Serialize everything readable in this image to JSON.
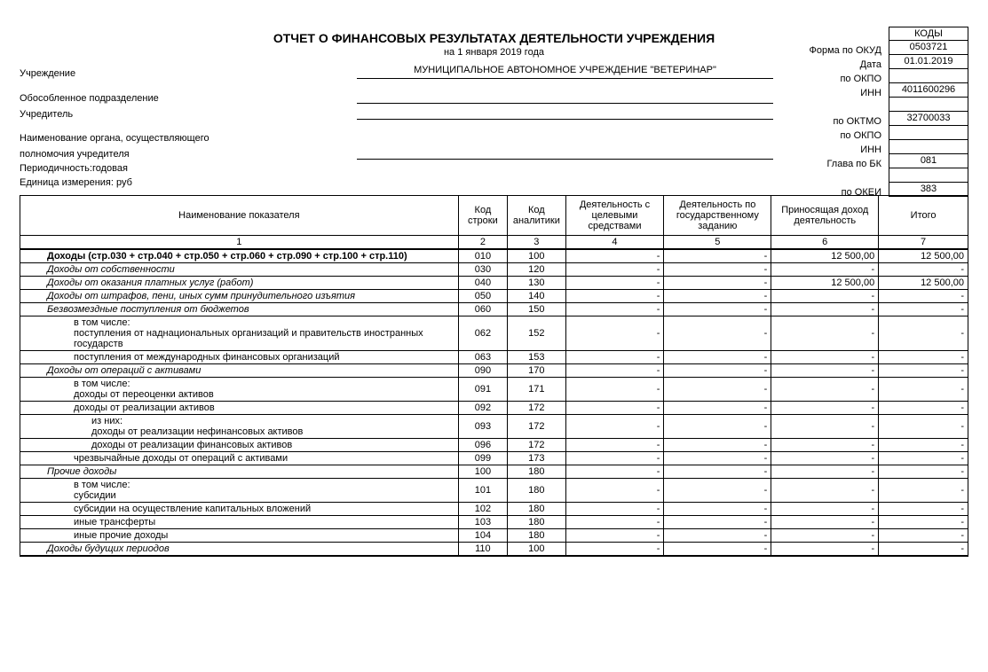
{
  "title": "ОТЧЕТ  О ФИНАНСОВЫХ РЕЗУЛЬТАТАХ ДЕЯТЕЛЬНОСТИ УЧРЕЖДЕНИЯ",
  "subtitle": "на 1 января 2019 года",
  "header": {
    "institution_lbl": "Учреждение",
    "institution_val": "МУНИЦИПАЛЬНОЕ АВТОНОМНОЕ УЧРЕЖДЕНИЕ \"ВЕТЕРИНАР\"",
    "subdiv_lbl": "Обособленное подразделение",
    "subdiv_val": "",
    "founder_lbl": "Учредитель",
    "founder_val": "",
    "authority_lbl1": "Наименование органа, осуществляющего",
    "authority_lbl2": "полномочия учредителя",
    "authority_val": "",
    "periodicity_lbl": "Периодичность:годовая",
    "unit_lbl": "Единица измерения: руб"
  },
  "codes": {
    "caption": "КОДЫ",
    "labels": [
      "Форма по ОКУД",
      "Дата",
      "по ОКПО",
      "ИНН",
      "",
      "по ОКТМО",
      "по ОКПО",
      "ИНН",
      "Глава по БК",
      "",
      "по ОКЕИ"
    ],
    "values": [
      "0503721",
      "01.01.2019",
      "",
      "4011600296",
      "",
      "32700033",
      "",
      "",
      "081",
      "",
      "383"
    ]
  },
  "table": {
    "headers": [
      "Наименование показателя",
      "Код строки",
      "Код аналитики",
      "Деятельность с целевыми средствами",
      "Деятельность по государственному заданию",
      "Приносящая доход деятельность",
      "Итого"
    ],
    "colnums": [
      "1",
      "2",
      "3",
      "4",
      "5",
      "6",
      "7"
    ],
    "rows": [
      {
        "name": "Доходы (стр.030 + стр.040 + стр.050 + стр.060 + стр.090 + стр.100 + стр.110)",
        "code": "010",
        "anal": "100",
        "v3": "-",
        "v4": "-",
        "v5": "12 500,00",
        "v6": "12 500,00",
        "bold": true,
        "indent": 1
      },
      {
        "name": "Доходы от собственности",
        "code": "030",
        "anal": "120",
        "v3": "-",
        "v4": "-",
        "v5": "-",
        "v6": "-",
        "it": true,
        "indent": 1
      },
      {
        "name": "Доходы от оказания платных услуг (работ)",
        "code": "040",
        "anal": "130",
        "v3": "-",
        "v4": "-",
        "v5": "12 500,00",
        "v6": "12 500,00",
        "it": true,
        "indent": 1
      },
      {
        "name": "Доходы от штрафов, пени, иных сумм принудительного изъятия",
        "code": "050",
        "anal": "140",
        "v3": "-",
        "v4": "-",
        "v5": "-",
        "v6": "-",
        "it": true,
        "indent": 1
      },
      {
        "name": "Безвозмездные поступления от бюджетов",
        "code": "060",
        "anal": "150",
        "v3": "-",
        "v4": "-",
        "v5": "-",
        "v6": "-",
        "it": true,
        "indent": 1
      },
      {
        "name": "в том числе:",
        "code": "",
        "anal": "",
        "v3": "",
        "v4": "",
        "v5": "",
        "v6": "",
        "indent": 2,
        "noborder": true
      },
      {
        "name": "поступления от наднациональных организаций и правительств иностранных государств",
        "code": "062",
        "anal": "152",
        "v3": "-",
        "v4": "-",
        "v5": "-",
        "v6": "-",
        "indent": 2,
        "merge": true
      },
      {
        "name": "поступления от международных финансовых организаций",
        "code": "063",
        "anal": "153",
        "v3": "-",
        "v4": "-",
        "v5": "-",
        "v6": "-",
        "indent": 2
      },
      {
        "name": "Доходы от операций с активами",
        "code": "090",
        "anal": "170",
        "v3": "-",
        "v4": "-",
        "v5": "-",
        "v6": "-",
        "it": true,
        "indent": 1
      },
      {
        "name": "в том числе:",
        "code": "",
        "anal": "",
        "v3": "",
        "v4": "",
        "v5": "",
        "v6": "",
        "indent": 2,
        "noborder": true
      },
      {
        "name": "доходы от переоценки активов",
        "code": "091",
        "anal": "171",
        "v3": "-",
        "v4": "-",
        "v5": "-",
        "v6": "-",
        "indent": 2,
        "merge": true
      },
      {
        "name": "доходы от реализации активов",
        "code": "092",
        "anal": "172",
        "v3": "-",
        "v4": "-",
        "v5": "-",
        "v6": "-",
        "indent": 2
      },
      {
        "name": "из них:",
        "code": "",
        "anal": "",
        "v3": "",
        "v4": "",
        "v5": "",
        "v6": "",
        "indent": 3,
        "noborder": true
      },
      {
        "name": "доходы от реализации нефинансовых активов",
        "code": "093",
        "anal": "172",
        "v3": "-",
        "v4": "-",
        "v5": "-",
        "v6": "-",
        "indent": 3,
        "merge": true
      },
      {
        "name": "доходы от реализации финансовых активов",
        "code": "096",
        "anal": "172",
        "v3": "-",
        "v4": "-",
        "v5": "-",
        "v6": "-",
        "indent": 3
      },
      {
        "name": "чрезвычайные доходы от операций с активами",
        "code": "099",
        "anal": "173",
        "v3": "-",
        "v4": "-",
        "v5": "-",
        "v6": "-",
        "indent": 2
      },
      {
        "name": "Прочие доходы",
        "code": "100",
        "anal": "180",
        "v3": "-",
        "v4": "-",
        "v5": "-",
        "v6": "-",
        "it": true,
        "indent": 1
      },
      {
        "name": "в том числе:",
        "code": "",
        "anal": "",
        "v3": "",
        "v4": "",
        "v5": "",
        "v6": "",
        "indent": 2,
        "noborder": true
      },
      {
        "name": "субсидии",
        "code": "101",
        "anal": "180",
        "v3": "-",
        "v4": "-",
        "v5": "-",
        "v6": "-",
        "indent": 2,
        "merge": true
      },
      {
        "name": "субсидии на осуществление капитальных вложений",
        "code": "102",
        "anal": "180",
        "v3": "-",
        "v4": "-",
        "v5": "-",
        "v6": "-",
        "indent": 2
      },
      {
        "name": "иные трансферты",
        "code": "103",
        "anal": "180",
        "v3": "-",
        "v4": "-",
        "v5": "-",
        "v6": "-",
        "indent": 2
      },
      {
        "name": "иные прочие доходы",
        "code": "104",
        "anal": "180",
        "v3": "-",
        "v4": "-",
        "v5": "-",
        "v6": "-",
        "indent": 2
      },
      {
        "name": "Доходы будущих периодов",
        "code": "110",
        "anal": "100",
        "v3": "-",
        "v4": "-",
        "v5": "-",
        "v6": "-",
        "it": true,
        "indent": 1,
        "last": true
      }
    ]
  }
}
